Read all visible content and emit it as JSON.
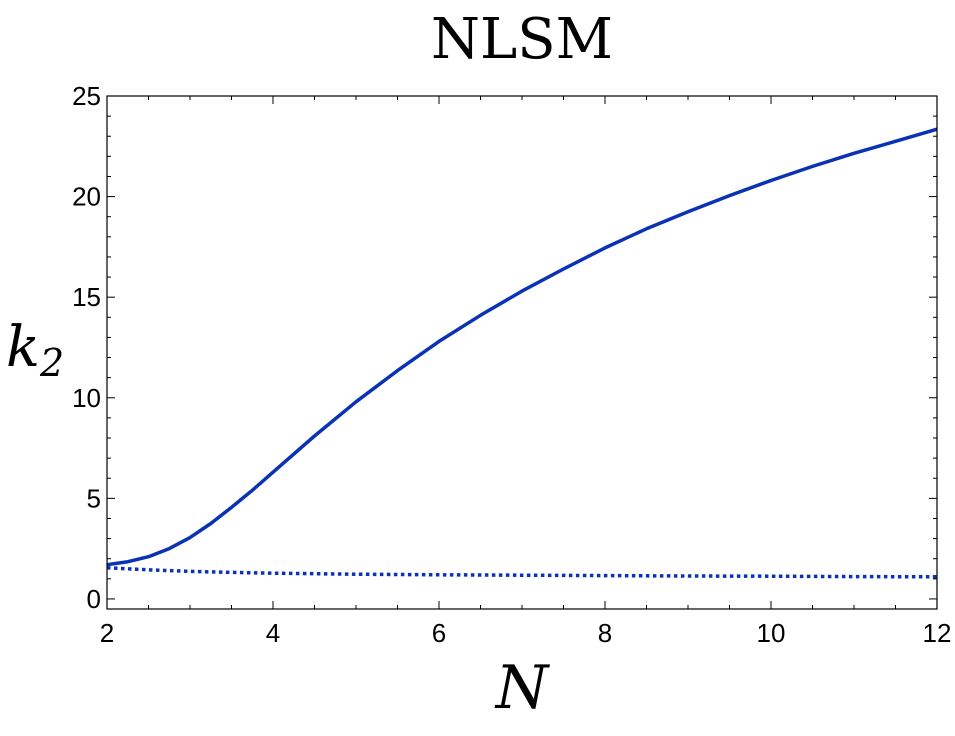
{
  "chart_data": {
    "type": "line",
    "title": "NLSM",
    "xlabel": "N",
    "ylabel": {
      "base": "k",
      "subscript": "2"
    },
    "xlim": [
      2,
      12
    ],
    "ylim": [
      -0.5,
      25
    ],
    "x_ticks": [
      2,
      4,
      6,
      8,
      10,
      12
    ],
    "y_ticks": [
      0,
      5,
      10,
      15,
      20,
      25
    ],
    "grid": false,
    "legend": "none",
    "series": [
      {
        "style": "solid",
        "color": "#0a32b4",
        "x": [
          2,
          2.25,
          2.5,
          2.75,
          3,
          3.25,
          3.5,
          3.75,
          4,
          4.5,
          5,
          5.5,
          6,
          6.5,
          7,
          7.5,
          8,
          8.5,
          9,
          9.5,
          10,
          10.5,
          11,
          11.5,
          12
        ],
        "y": [
          1.7,
          1.85,
          2.1,
          2.5,
          3.05,
          3.75,
          4.55,
          5.4,
          6.3,
          8.1,
          9.8,
          11.35,
          12.8,
          14.1,
          15.3,
          16.4,
          17.45,
          18.4,
          19.25,
          20.05,
          20.8,
          21.5,
          22.15,
          22.75,
          23.35
        ]
      },
      {
        "style": "dotted",
        "color": "#0a32b4",
        "x": [
          2,
          2.5,
          3,
          3.5,
          4,
          5,
          6,
          7,
          8,
          9,
          10,
          11,
          12
        ],
        "y": [
          1.55,
          1.45,
          1.37,
          1.32,
          1.28,
          1.23,
          1.2,
          1.18,
          1.16,
          1.14,
          1.13,
          1.11,
          1.1
        ]
      }
    ]
  }
}
